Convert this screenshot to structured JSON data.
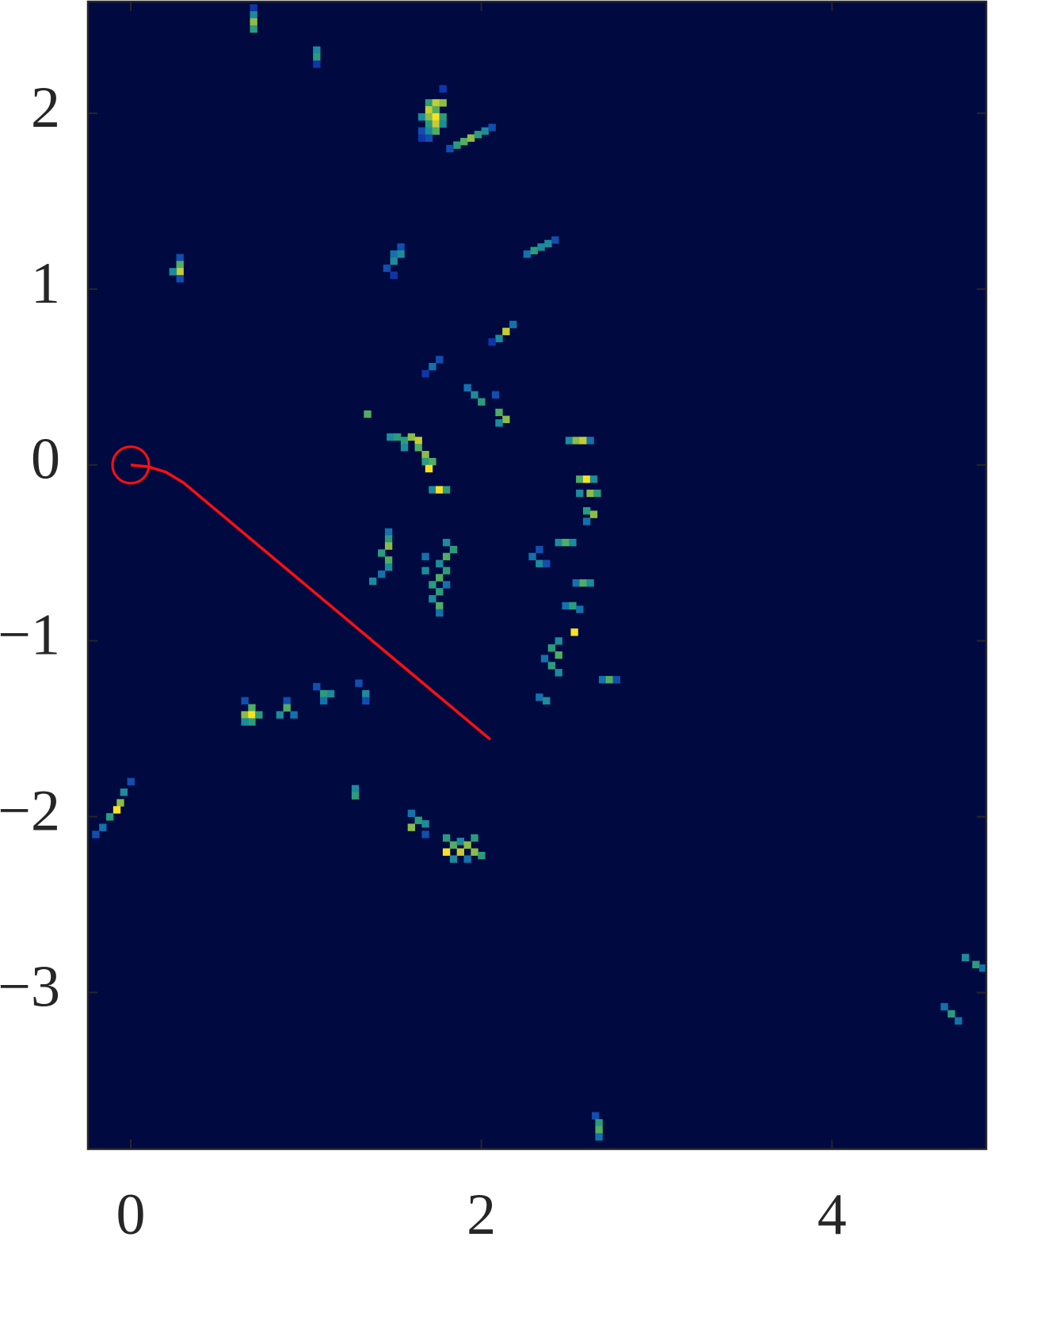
{
  "chart_data": {
    "type": "heatmap",
    "background": "#000a40",
    "xlim": [
      -0.244,
      4.88
    ],
    "ylim": [
      -3.89,
      2.635
    ],
    "xticks": [
      0,
      2,
      4
    ],
    "yticks": [
      {
        "value": -3,
        "label": "−3"
      },
      {
        "value": -2,
        "label": "−2"
      },
      {
        "value": -1,
        "label": "−1"
      },
      0,
      1,
      2
    ],
    "cell": 0.04,
    "cells": [
      [
        0.7,
        2.6,
        0.2
      ],
      [
        0.7,
        2.56,
        0.5
      ],
      [
        0.7,
        2.52,
        0.8
      ],
      [
        0.7,
        2.48,
        0.6
      ],
      [
        1.06,
        2.36,
        0.5
      ],
      [
        1.06,
        2.32,
        0.6
      ],
      [
        1.06,
        2.28,
        0.2
      ],
      [
        1.78,
        2.14,
        0.2
      ],
      [
        1.7,
        2.06,
        0.6
      ],
      [
        1.74,
        2.06,
        0.9
      ],
      [
        1.78,
        2.06,
        0.8
      ],
      [
        1.7,
        2.02,
        0.9
      ],
      [
        1.74,
        2.02,
        0.7
      ],
      [
        1.66,
        1.98,
        0.5
      ],
      [
        1.7,
        1.98,
        0.8
      ],
      [
        1.74,
        1.98,
        1.0
      ],
      [
        1.78,
        1.98,
        0.6
      ],
      [
        1.7,
        1.94,
        0.6
      ],
      [
        1.74,
        1.94,
        0.9
      ],
      [
        1.78,
        1.94,
        0.5
      ],
      [
        1.66,
        1.9,
        0.3
      ],
      [
        1.7,
        1.9,
        0.5
      ],
      [
        1.74,
        1.9,
        0.7
      ],
      [
        1.66,
        1.86,
        0.2
      ],
      [
        1.7,
        1.86,
        0.3
      ],
      [
        1.86,
        1.82,
        0.6
      ],
      [
        1.9,
        1.84,
        0.7
      ],
      [
        1.94,
        1.86,
        0.8
      ],
      [
        1.98,
        1.88,
        0.6
      ],
      [
        2.02,
        1.9,
        0.5
      ],
      [
        2.06,
        1.92,
        0.3
      ],
      [
        1.82,
        1.8,
        0.3
      ],
      [
        0.28,
        1.18,
        0.3
      ],
      [
        0.28,
        1.14,
        0.7
      ],
      [
        0.28,
        1.1,
        0.9
      ],
      [
        0.24,
        1.1,
        0.5
      ],
      [
        0.28,
        1.06,
        0.3
      ],
      [
        1.54,
        1.24,
        0.3
      ],
      [
        1.5,
        1.2,
        0.4
      ],
      [
        1.54,
        1.2,
        0.5
      ],
      [
        1.5,
        1.16,
        0.5
      ],
      [
        1.46,
        1.12,
        0.3
      ],
      [
        1.5,
        1.08,
        0.2
      ],
      [
        2.26,
        1.2,
        0.4
      ],
      [
        2.3,
        1.22,
        0.6
      ],
      [
        2.34,
        1.24,
        0.5
      ],
      [
        2.38,
        1.26,
        0.5
      ],
      [
        2.42,
        1.28,
        0.3
      ],
      [
        2.18,
        0.8,
        0.4
      ],
      [
        2.14,
        0.76,
        0.9
      ],
      [
        2.1,
        0.72,
        0.5
      ],
      [
        2.06,
        0.7,
        0.2
      ],
      [
        1.76,
        0.6,
        0.3
      ],
      [
        1.72,
        0.56,
        0.4
      ],
      [
        1.68,
        0.52,
        0.2
      ],
      [
        1.92,
        0.44,
        0.4
      ],
      [
        1.96,
        0.4,
        0.5
      ],
      [
        2.0,
        0.36,
        0.6
      ],
      [
        2.08,
        0.4,
        0.3
      ],
      [
        2.1,
        0.3,
        0.7
      ],
      [
        2.14,
        0.26,
        0.8
      ],
      [
        2.1,
        0.24,
        0.5
      ],
      [
        1.35,
        0.29,
        0.7
      ],
      [
        1.48,
        0.16,
        0.5
      ],
      [
        1.52,
        0.16,
        0.6
      ],
      [
        1.56,
        0.14,
        0.6
      ],
      [
        1.6,
        0.16,
        0.8
      ],
      [
        1.64,
        0.14,
        0.9
      ],
      [
        1.56,
        0.1,
        0.5
      ],
      [
        1.64,
        0.1,
        0.7
      ],
      [
        1.68,
        0.06,
        0.8
      ],
      [
        1.68,
        0.02,
        0.6
      ],
      [
        1.72,
        0.02,
        0.7
      ],
      [
        1.7,
        -0.02,
        1.0
      ],
      [
        1.72,
        -0.14,
        0.5
      ],
      [
        1.76,
        -0.14,
        1.0
      ],
      [
        1.8,
        -0.14,
        0.6
      ],
      [
        2.5,
        0.14,
        0.5
      ],
      [
        2.54,
        0.14,
        0.8
      ],
      [
        2.58,
        0.14,
        0.9
      ],
      [
        2.62,
        0.14,
        0.4
      ],
      [
        2.56,
        -0.08,
        0.7
      ],
      [
        2.6,
        -0.08,
        1.0
      ],
      [
        2.64,
        -0.08,
        0.5
      ],
      [
        2.56,
        -0.16,
        0.5
      ],
      [
        2.62,
        -0.16,
        0.8
      ],
      [
        2.66,
        -0.16,
        0.6
      ],
      [
        2.6,
        -0.26,
        0.6
      ],
      [
        2.64,
        -0.28,
        0.8
      ],
      [
        2.6,
        -0.32,
        0.4
      ],
      [
        1.47,
        -0.38,
        0.4
      ],
      [
        1.47,
        -0.42,
        0.6
      ],
      [
        1.47,
        -0.46,
        0.8
      ],
      [
        1.43,
        -0.5,
        0.6
      ],
      [
        1.47,
        -0.54,
        0.7
      ],
      [
        1.47,
        -0.58,
        0.5
      ],
      [
        1.43,
        -0.62,
        0.4
      ],
      [
        1.38,
        -0.66,
        0.5
      ],
      [
        1.8,
        -0.44,
        0.5
      ],
      [
        1.84,
        -0.48,
        0.6
      ],
      [
        1.8,
        -0.52,
        0.7
      ],
      [
        1.76,
        -0.56,
        0.5
      ],
      [
        1.8,
        -0.6,
        0.6
      ],
      [
        1.76,
        -0.64,
        0.7
      ],
      [
        1.72,
        -0.68,
        0.6
      ],
      [
        1.8,
        -0.68,
        0.4
      ],
      [
        1.76,
        -0.72,
        0.6
      ],
      [
        1.72,
        -0.76,
        0.5
      ],
      [
        1.76,
        -0.8,
        0.7
      ],
      [
        1.76,
        -0.84,
        0.4
      ],
      [
        1.68,
        -0.52,
        0.4
      ],
      [
        1.68,
        -0.6,
        0.5
      ],
      [
        2.33,
        -0.48,
        0.3
      ],
      [
        2.29,
        -0.52,
        0.4
      ],
      [
        2.33,
        -0.56,
        0.5
      ],
      [
        2.37,
        -0.56,
        0.3
      ],
      [
        2.44,
        -0.44,
        0.5
      ],
      [
        2.48,
        -0.44,
        0.7
      ],
      [
        2.52,
        -0.44,
        0.5
      ],
      [
        2.54,
        -0.67,
        0.4
      ],
      [
        2.58,
        -0.67,
        0.7
      ],
      [
        2.62,
        -0.67,
        0.5
      ],
      [
        2.48,
        -0.8,
        0.4
      ],
      [
        2.52,
        -0.8,
        0.6
      ],
      [
        2.56,
        -0.82,
        0.4
      ],
      [
        2.53,
        -0.95,
        1.0
      ],
      [
        2.44,
        -1.0,
        0.5
      ],
      [
        2.4,
        -1.04,
        0.6
      ],
      [
        2.44,
        -1.08,
        0.7
      ],
      [
        2.36,
        -1.1,
        0.4
      ],
      [
        2.4,
        -1.14,
        0.6
      ],
      [
        2.44,
        -1.18,
        0.5
      ],
      [
        2.69,
        -1.22,
        0.4
      ],
      [
        2.73,
        -1.22,
        0.7
      ],
      [
        2.77,
        -1.22,
        0.3
      ],
      [
        2.33,
        -1.32,
        0.4
      ],
      [
        2.37,
        -1.34,
        0.5
      ],
      [
        0.65,
        -1.34,
        0.3
      ],
      [
        0.69,
        -1.38,
        0.7
      ],
      [
        0.65,
        -1.42,
        0.8
      ],
      [
        0.69,
        -1.42,
        1.0
      ],
      [
        0.73,
        -1.42,
        0.6
      ],
      [
        0.69,
        -1.46,
        0.6
      ],
      [
        0.65,
        -1.46,
        0.5
      ],
      [
        0.89,
        -1.34,
        0.3
      ],
      [
        0.89,
        -1.38,
        0.7
      ],
      [
        0.85,
        -1.42,
        0.5
      ],
      [
        0.93,
        -1.42,
        0.4
      ],
      [
        1.06,
        -1.26,
        0.3
      ],
      [
        1.1,
        -1.3,
        0.6
      ],
      [
        1.14,
        -1.3,
        0.5
      ],
      [
        1.1,
        -1.34,
        0.4
      ],
      [
        1.3,
        -1.24,
        0.3
      ],
      [
        1.34,
        -1.3,
        0.5
      ],
      [
        1.34,
        -1.34,
        0.3
      ],
      [
        1.28,
        -1.84,
        0.5
      ],
      [
        1.28,
        -1.88,
        0.6
      ],
      [
        0.0,
        -1.8,
        0.3
      ],
      [
        -0.04,
        -1.86,
        0.5
      ],
      [
        -0.06,
        -1.92,
        0.8
      ],
      [
        -0.08,
        -1.96,
        1.0
      ],
      [
        -0.12,
        -2.0,
        0.6
      ],
      [
        -0.16,
        -2.06,
        0.4
      ],
      [
        -0.2,
        -2.1,
        0.3
      ],
      [
        1.6,
        -1.98,
        0.4
      ],
      [
        1.64,
        -2.02,
        0.6
      ],
      [
        1.68,
        -2.04,
        0.5
      ],
      [
        1.6,
        -2.06,
        0.8
      ],
      [
        1.68,
        -2.1,
        0.3
      ],
      [
        1.8,
        -2.12,
        0.6
      ],
      [
        1.84,
        -2.16,
        0.7
      ],
      [
        1.88,
        -2.14,
        0.5
      ],
      [
        1.92,
        -2.16,
        0.8
      ],
      [
        1.96,
        -2.12,
        0.6
      ],
      [
        1.8,
        -2.2,
        1.0
      ],
      [
        1.88,
        -2.2,
        0.9
      ],
      [
        1.96,
        -2.2,
        0.8
      ],
      [
        2.0,
        -2.22,
        0.6
      ],
      [
        1.84,
        -2.24,
        0.5
      ],
      [
        1.92,
        -2.24,
        0.4
      ],
      [
        4.64,
        -3.08,
        0.4
      ],
      [
        4.68,
        -3.12,
        0.6
      ],
      [
        4.72,
        -3.16,
        0.4
      ],
      [
        4.76,
        -2.8,
        0.5
      ],
      [
        4.82,
        -2.84,
        0.6
      ],
      [
        4.86,
        -2.86,
        0.4
      ],
      [
        2.65,
        -3.7,
        0.3
      ],
      [
        2.67,
        -3.74,
        0.6
      ],
      [
        2.67,
        -3.78,
        0.7
      ],
      [
        2.67,
        -3.82,
        0.4
      ]
    ],
    "path": {
      "color": "#ff1010",
      "x": [
        0,
        0.1,
        0.2,
        0.3,
        2.05
      ],
      "y": [
        0,
        -0.01,
        -0.04,
        -0.1,
        -1.56
      ]
    }
  }
}
